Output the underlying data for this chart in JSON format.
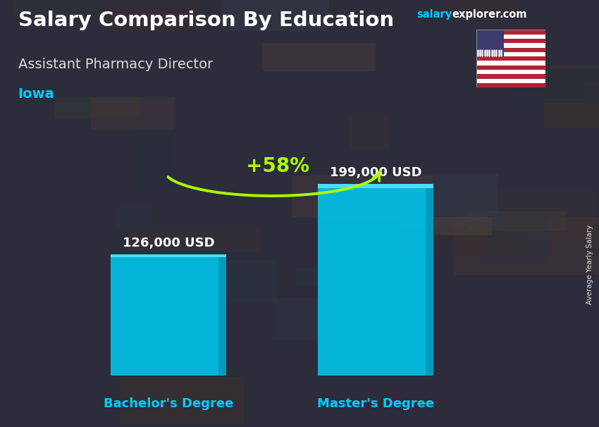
{
  "title": "Salary Comparison By Education",
  "subtitle": "Assistant Pharmacy Director",
  "location": "Iowa",
  "categories": [
    "Bachelor's Degree",
    "Master's Degree"
  ],
  "values": [
    126000,
    199000
  ],
  "value_labels": [
    "126,000 USD",
    "199,000 USD"
  ],
  "pct_label": "+58%",
  "pct_color": "#aaff00",
  "bar_color": "#00c8f0",
  "bar_color_light": "#55dfff",
  "bar_color_dark": "#0099bb",
  "x_label_color": "#00ccff",
  "title_color": "#ffffff",
  "subtitle_color": "#dddddd",
  "location_color": "#00ccff",
  "brand_salary_color": "#00ccff",
  "brand_rest_color": "#ffffff",
  "bg_color": "#404050",
  "ylabel": "Average Yearly Salary",
  "ylim": [
    0,
    230000
  ],
  "bar_width": 0.28,
  "x_positions": [
    0.22,
    0.72
  ],
  "xlim": [
    -0.1,
    1.1
  ],
  "figsize": [
    8.5,
    6.06
  ],
  "dpi": 100
}
